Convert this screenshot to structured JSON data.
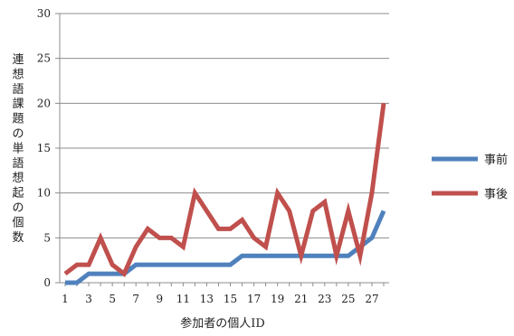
{
  "chart_data": {
    "type": "line",
    "title": "",
    "xlabel": "参加者の個人ID",
    "ylabel": "連想語課題の単語想起の個数",
    "x": [
      1,
      2,
      3,
      4,
      5,
      6,
      7,
      8,
      9,
      10,
      11,
      12,
      13,
      14,
      15,
      16,
      17,
      18,
      19,
      20,
      21,
      22,
      23,
      24,
      25,
      26,
      27,
      28
    ],
    "x_tick_labels": [
      "1",
      "3",
      "5",
      "7",
      "9",
      "11",
      "13",
      "15",
      "17",
      "19",
      "21",
      "23",
      "25",
      "27"
    ],
    "ylim": [
      0,
      30
    ],
    "y_ticks": [
      0,
      5,
      10,
      15,
      20,
      25,
      30
    ],
    "grid": "horizontal",
    "legend_position": "right",
    "series": [
      {
        "name": "事前",
        "color": "#4f81bd",
        "values": [
          0,
          0,
          1,
          1,
          1,
          1,
          2,
          2,
          2,
          2,
          2,
          2,
          2,
          2,
          2,
          3,
          3,
          3,
          3,
          3,
          3,
          3,
          3,
          3,
          3,
          4,
          5,
          8
        ]
      },
      {
        "name": "事後",
        "color": "#c0504d",
        "values": [
          1,
          2,
          2,
          5,
          2,
          1,
          4,
          6,
          5,
          5,
          4,
          10,
          8,
          6,
          6,
          7,
          5,
          4,
          10,
          8,
          3,
          8,
          9,
          3,
          8,
          3,
          10,
          20
        ]
      }
    ]
  }
}
